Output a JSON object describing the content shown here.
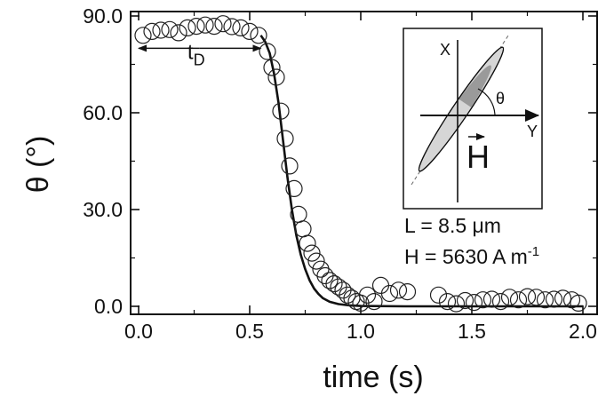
{
  "chart_data": {
    "type": "scatter",
    "xlabel": "time (s)",
    "ylabel": "θ (°)",
    "xlim": [
      0.0,
      2.0
    ],
    "ylim": [
      0.0,
      90.0
    ],
    "x_ticks": [
      "0.0",
      "0.5",
      "1.0",
      "1.5",
      "2.0"
    ],
    "y_ticks": [
      "0.0",
      "30.0",
      "60.0",
      "90.0"
    ],
    "grid": false,
    "series": [
      {
        "kind": "measured",
        "marker": "open-circle",
        "points": [
          [
            0.02,
            84.0
          ],
          [
            0.06,
            85.2
          ],
          [
            0.1,
            85.6
          ],
          [
            0.14,
            85.8
          ],
          [
            0.18,
            84.8
          ],
          [
            0.22,
            86.3
          ],
          [
            0.26,
            86.8
          ],
          [
            0.3,
            87.2
          ],
          [
            0.34,
            86.8
          ],
          [
            0.38,
            87.6
          ],
          [
            0.42,
            86.7
          ],
          [
            0.46,
            86.3
          ],
          [
            0.5,
            85.2
          ],
          [
            0.54,
            84.0
          ],
          [
            0.58,
            79.0
          ],
          [
            0.6,
            74.0
          ],
          [
            0.62,
            71.0
          ],
          [
            0.64,
            60.5
          ],
          [
            0.66,
            52.0
          ],
          [
            0.68,
            43.5
          ],
          [
            0.7,
            36.5
          ],
          [
            0.72,
            28.5
          ],
          [
            0.74,
            24.0
          ],
          [
            0.76,
            19.5
          ],
          [
            0.78,
            16.5
          ],
          [
            0.8,
            14.0
          ],
          [
            0.82,
            11.5
          ],
          [
            0.84,
            9.5
          ],
          [
            0.86,
            8.0
          ],
          [
            0.88,
            7.0
          ],
          [
            0.9,
            6.0
          ],
          [
            0.92,
            5.0
          ],
          [
            0.94,
            3.5
          ],
          [
            0.96,
            2.5
          ],
          [
            0.98,
            1.5
          ],
          [
            1.0,
            1.0
          ],
          [
            1.03,
            3.5
          ],
          [
            1.06,
            1.5
          ],
          [
            1.09,
            6.5
          ],
          [
            1.13,
            4.0
          ],
          [
            1.17,
            5.0
          ],
          [
            1.21,
            4.5
          ],
          [
            1.35,
            3.5
          ],
          [
            1.39,
            1.5
          ],
          [
            1.43,
            0.8
          ],
          [
            1.47,
            1.8
          ],
          [
            1.51,
            1.2
          ],
          [
            1.55,
            2.0
          ],
          [
            1.59,
            2.2
          ],
          [
            1.63,
            1.5
          ],
          [
            1.67,
            2.8
          ],
          [
            1.71,
            2.0
          ],
          [
            1.75,
            3.0
          ],
          [
            1.79,
            2.8
          ],
          [
            1.83,
            2.0
          ],
          [
            1.87,
            2.2
          ],
          [
            1.91,
            2.5
          ],
          [
            1.95,
            2.0
          ],
          [
            1.98,
            1.0
          ]
        ]
      },
      {
        "kind": "fit",
        "style": "solid-black-line",
        "points": [
          [
            0.55,
            84.0
          ],
          [
            0.57,
            82.0
          ],
          [
            0.59,
            78.5
          ],
          [
            0.61,
            72.0
          ],
          [
            0.63,
            63.0
          ],
          [
            0.65,
            51.5
          ],
          [
            0.67,
            40.0
          ],
          [
            0.69,
            30.0
          ],
          [
            0.71,
            22.0
          ],
          [
            0.73,
            16.0
          ],
          [
            0.75,
            11.5
          ],
          [
            0.77,
            8.0
          ],
          [
            0.79,
            5.5
          ],
          [
            0.81,
            3.8
          ],
          [
            0.83,
            2.5
          ],
          [
            0.86,
            1.4
          ],
          [
            0.9,
            0.7
          ],
          [
            0.95,
            0.3
          ],
          [
            1.0,
            0.1
          ],
          [
            1.2,
            0.0
          ],
          [
            1.6,
            0.0
          ],
          [
            2.0,
            0.0
          ]
        ]
      }
    ],
    "annotations": {
      "delay": {
        "label": "t",
        "subscript": "D",
        "x_start": 0.0,
        "x_end": 0.55,
        "y": 80.0
      },
      "length": "L = 8.5 μm",
      "field": {
        "prefix": "H = 5630 A m",
        "exponent": "-1"
      }
    },
    "inset": {
      "x_axis": "X",
      "y_axis": "Y",
      "angle": "θ",
      "vector": "H"
    }
  }
}
